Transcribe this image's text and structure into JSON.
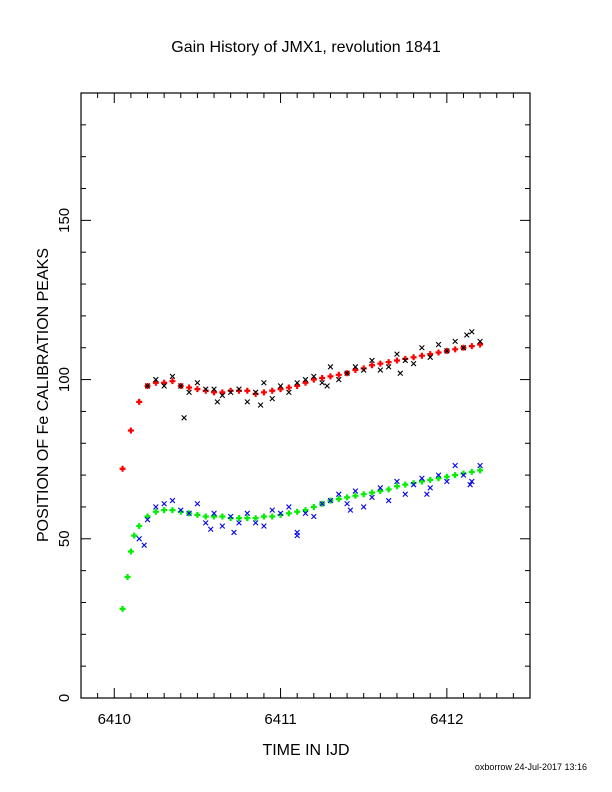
{
  "chart_data": {
    "type": "scatter",
    "title": "Gain History of JMX1, revolution 1841",
    "xlabel": "TIME IN IJD",
    "ylabel": "POSITION OF Fe CALIBRATION PEAKS",
    "xlim": [
      6409.8,
      6412.5
    ],
    "ylim": [
      0,
      190
    ],
    "x_ticks": [
      6410,
      6411,
      6412
    ],
    "y_ticks": [
      0,
      50,
      100,
      150
    ],
    "grid": false,
    "footer": "oxborrow 24-Jul-2017 13:16",
    "series": [
      {
        "kind": "fit-upper",
        "color": "#ff0000",
        "marker": "+",
        "x": [
          6410.05,
          6410.1,
          6410.15,
          6410.2,
          6410.25,
          6410.3,
          6410.35,
          6410.4,
          6410.45,
          6410.5,
          6410.55,
          6410.6,
          6410.65,
          6410.7,
          6410.75,
          6410.8,
          6410.85,
          6410.9,
          6410.95,
          6411.0,
          6411.05,
          6411.1,
          6411.15,
          6411.2,
          6411.25,
          6411.3,
          6411.35,
          6411.4,
          6411.45,
          6411.5,
          6411.55,
          6411.6,
          6411.65,
          6411.7,
          6411.75,
          6411.8,
          6411.85,
          6411.9,
          6411.95,
          6412.0,
          6412.05,
          6412.1,
          6412.15,
          6412.2
        ],
        "y": [
          72,
          84,
          93,
          98,
          99,
          99,
          99.5,
          98,
          97.5,
          97,
          96.5,
          96,
          96,
          96.5,
          96.5,
          96.5,
          95.5,
          96,
          96.5,
          97,
          97.5,
          98,
          99,
          100,
          100.5,
          101,
          101.5,
          102,
          103,
          103.5,
          104.5,
          105,
          105.5,
          106,
          106.5,
          107,
          107.5,
          108,
          108.5,
          109,
          109.5,
          110,
          110.5,
          111
        ]
      },
      {
        "kind": "fit-lower",
        "color": "#00ee00",
        "marker": "+",
        "x": [
          6410.05,
          6410.08,
          6410.1,
          6410.12,
          6410.15,
          6410.2,
          6410.25,
          6410.3,
          6410.35,
          6410.4,
          6410.45,
          6410.5,
          6410.55,
          6410.6,
          6410.65,
          6410.7,
          6410.75,
          6410.8,
          6410.85,
          6410.9,
          6410.95,
          6411.0,
          6411.05,
          6411.1,
          6411.15,
          6411.2,
          6411.25,
          6411.3,
          6411.35,
          6411.4,
          6411.45,
          6411.5,
          6411.55,
          6411.6,
          6411.65,
          6411.7,
          6411.75,
          6411.8,
          6411.85,
          6411.9,
          6411.95,
          6412.0,
          6412.05,
          6412.1,
          6412.15,
          6412.2
        ],
        "y": [
          28,
          38,
          46,
          51,
          54,
          57,
          58.5,
          59,
          59,
          58.5,
          58,
          57.5,
          57,
          57,
          57,
          56.5,
          56.5,
          56.5,
          56.5,
          57,
          57,
          57.5,
          58,
          58.5,
          59,
          60,
          61,
          62,
          62.5,
          63,
          63.5,
          64,
          64.5,
          65,
          65.5,
          66.5,
          67,
          67.5,
          68,
          68.5,
          69,
          69.5,
          70,
          70.5,
          71,
          71.5
        ]
      },
      {
        "kind": "measured-upper",
        "color": "#000000",
        "marker": "x",
        "x": [
          6410.2,
          6410.25,
          6410.3,
          6410.35,
          6410.4,
          6410.45,
          6410.5,
          6410.55,
          6410.6,
          6410.65,
          6410.7,
          6410.75,
          6410.8,
          6410.85,
          6410.9,
          6410.95,
          6411.0,
          6411.05,
          6411.1,
          6411.15,
          6411.2,
          6411.25,
          6411.3,
          6411.35,
          6411.4,
          6411.45,
          6411.5,
          6411.55,
          6411.6,
          6411.65,
          6411.7,
          6411.75,
          6411.8,
          6411.85,
          6411.9,
          6411.95,
          6412.0,
          6412.05,
          6412.1,
          6412.15,
          6412.2,
          6410.42,
          6410.62,
          6410.88,
          6411.28,
          6411.72,
          6412.12
        ],
        "y": [
          98,
          100,
          98,
          101,
          98,
          96,
          99,
          97,
          97,
          95,
          96,
          97,
          93,
          96,
          99,
          94,
          98,
          96,
          99,
          100,
          101,
          99,
          104,
          100,
          102,
          104,
          103,
          106,
          103,
          104,
          108,
          106,
          105,
          110,
          107,
          111,
          109,
          112,
          110,
          115,
          112,
          88,
          93,
          92,
          98,
          102,
          114
        ]
      },
      {
        "kind": "measured-lower",
        "color": "#0000ee",
        "marker": "x",
        "x": [
          6410.15,
          6410.2,
          6410.25,
          6410.3,
          6410.35,
          6410.4,
          6410.45,
          6410.5,
          6410.55,
          6410.6,
          6410.65,
          6410.7,
          6410.75,
          6410.8,
          6410.85,
          6410.9,
          6410.95,
          6411.0,
          6411.05,
          6411.1,
          6411.15,
          6411.2,
          6411.25,
          6411.3,
          6411.35,
          6411.4,
          6411.45,
          6411.5,
          6411.55,
          6411.6,
          6411.65,
          6411.7,
          6411.75,
          6411.8,
          6411.85,
          6411.9,
          6411.95,
          6412.0,
          6412.05,
          6412.1,
          6412.15,
          6412.2,
          6410.18,
          6410.58,
          6410.72,
          6411.1,
          6411.42,
          6411.88,
          6412.14
        ],
        "y": [
          50,
          56,
          60,
          61,
          62,
          59,
          58,
          61,
          55,
          58,
          54,
          57,
          55,
          58,
          55,
          54,
          59,
          58,
          60,
          52,
          58,
          57,
          61,
          62,
          64,
          61,
          65,
          60,
          63,
          66,
          62,
          68,
          64,
          67,
          69,
          66,
          70,
          68,
          73,
          70,
          68,
          73,
          48,
          53,
          52,
          51,
          59,
          64,
          67
        ]
      }
    ]
  }
}
